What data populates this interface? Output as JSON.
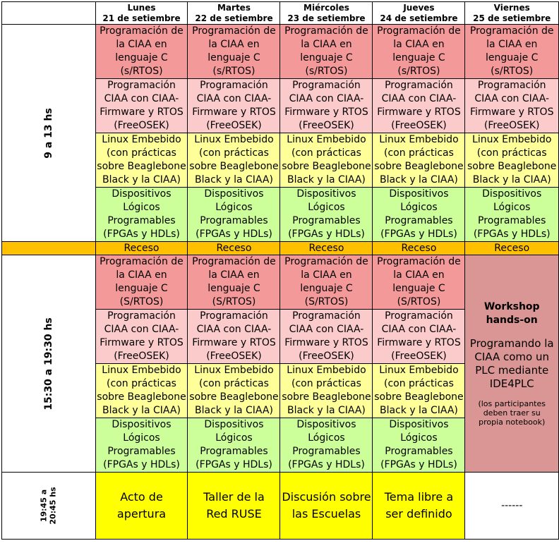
{
  "days": [
    {
      "name": "Lunes",
      "date": "21 de setiembre"
    },
    {
      "name": "Martes",
      "date": "22 de setiembre"
    },
    {
      "name": "Miércoles",
      "date": "23 de setiembre"
    },
    {
      "name": "Jueves",
      "date": "24 de setiembre"
    },
    {
      "name": "Viernes",
      "date": "25 de setiembre"
    }
  ],
  "time_slots": {
    "morning": "9 a 13 hs",
    "afternoon": "15:30 a 19:30 hs",
    "evening_line1": "19:45 a",
    "evening_line2": "20:45 hs"
  },
  "courses": {
    "c1_s": [
      "Programación de",
      "la CIAA en",
      "lenguaje C",
      "(s/RTOS)"
    ],
    "c1_S": [
      "Programación de",
      "la CIAA en",
      "lenguaje C",
      "(S/RTOS)"
    ],
    "c2": [
      "Programación",
      "CIAA con CIAA-",
      "Firmware y RTOS",
      "(FreeOSEK)"
    ],
    "c3": [
      "Linux Embebido",
      "(con prácticas",
      "sobre Beaglebone",
      "Black y la CIAA)"
    ],
    "c4": [
      "Dispositivos",
      "Lógicos",
      "Programables",
      "(FPGAs y HDLs)"
    ]
  },
  "recess": "Receso",
  "workshop": {
    "title_line1": "Workshop",
    "title_line2": "hands-on",
    "body": [
      "Programando la",
      "CIAA como un",
      "PLC mediante",
      "IDE4PLC"
    ],
    "note": [
      "(los participantes",
      "deben traer su",
      "propia notebook)"
    ]
  },
  "evening": [
    [
      "Acto de",
      "apertura"
    ],
    [
      "Taller de la",
      "Red RUSE"
    ],
    [
      "Discusión sobre",
      "las Escuelas"
    ],
    [
      "Tema libre a",
      "ser definido"
    ],
    [
      "------"
    ]
  ],
  "colors": {
    "course1": "#f4999a",
    "course2": "#fbcacb",
    "course3": "#ffff99",
    "course4": "#ccff99",
    "recess": "#ffc000",
    "workshop": "#da9694",
    "evening": "#ffff00"
  }
}
